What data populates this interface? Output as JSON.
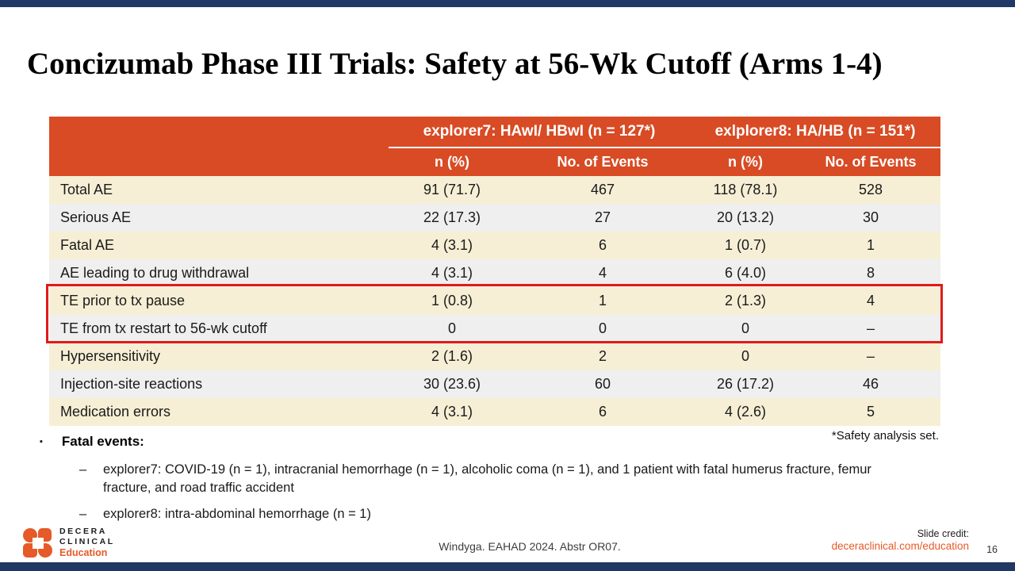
{
  "slide": {
    "title": "Concizumab Phase III Trials: Safety at 56-Wk Cutoff (Arms 1-4)",
    "footnote": "*Safety analysis set.",
    "page_number": "16"
  },
  "table": {
    "group_headers": [
      {
        "label": "explorer7: HAwI/ HBwI (n = 127*)"
      },
      {
        "label": "exlplorer8: HA/HB (n = 151*)"
      }
    ],
    "sub_headers": [
      "n (%)",
      "No. of Events",
      "n (%)",
      "No. of Events"
    ],
    "rows": [
      {
        "label": "Total AE",
        "values": [
          "91 (71.7)",
          "467",
          "118 (78.1)",
          "528"
        ],
        "highlighted": false
      },
      {
        "label": "Serious AE",
        "values": [
          "22 (17.3)",
          "27",
          "20 (13.2)",
          "30"
        ],
        "highlighted": false
      },
      {
        "label": "Fatal AE",
        "values": [
          "4 (3.1)",
          "6",
          "1 (0.7)",
          "1"
        ],
        "highlighted": false
      },
      {
        "label": "AE leading to drug withdrawal",
        "values": [
          "4 (3.1)",
          "4",
          "6 (4.0)",
          "8"
        ],
        "highlighted": false
      },
      {
        "label": "TE prior to tx pause",
        "values": [
          "1 (0.8)",
          "1",
          "2 (1.3)",
          "4"
        ],
        "highlighted": true
      },
      {
        "label": "TE from tx restart to 56-wk cutoff",
        "values": [
          "0",
          "0",
          "0",
          "–"
        ],
        "highlighted": true
      },
      {
        "label": "Hypersensitivity",
        "values": [
          "2 (1.6)",
          "2",
          "0",
          "–"
        ],
        "highlighted": false
      },
      {
        "label": "Injection-site reactions",
        "values": [
          "30 (23.6)",
          "60",
          "26 (17.2)",
          "46"
        ],
        "highlighted": false
      },
      {
        "label": "Medication errors",
        "values": [
          "4 (3.1)",
          "6",
          "4 (2.6)",
          "5"
        ],
        "highlighted": false
      }
    ]
  },
  "bullets": {
    "marker": "▪",
    "item_marker": "–",
    "heading": "Fatal events:",
    "items": [
      "explorer7:  COVID-19 (n = 1), intracranial hemorrhage (n = 1), alcoholic coma (n = 1), and 1 patient with fatal humerus fracture, femur fracture, and road traffic accident",
      "explorer8: intra-abdominal hemorrhage (n = 1)"
    ]
  },
  "footer": {
    "logo": {
      "line1": "DECERA",
      "line2": "CLINICAL",
      "line3": "Education"
    },
    "citation": "Windyga. EAHAD 2024. Abstr OR07.",
    "credit_label": "Slide credit:",
    "credit_link": "deceraclinical.com/education"
  },
  "colors": {
    "header_bg": "#d84b24",
    "row_cream": "#f6efd5",
    "row_gray": "#efefef",
    "highlight_border": "#e01a1a",
    "accent_navy": "#1f3864",
    "brand_orange": "#e55a28"
  }
}
